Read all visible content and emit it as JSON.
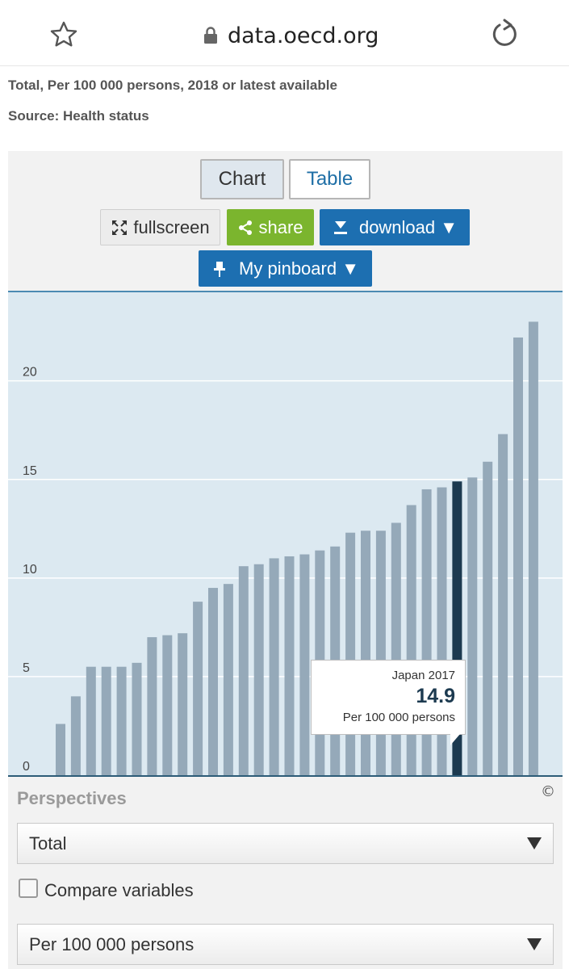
{
  "browser": {
    "url": "data.oecd.org"
  },
  "header": {
    "subtitle": "Total, Per 100 000 persons, 2018 or latest available",
    "source": "Source: Health status"
  },
  "toolbar": {
    "chart_label": "Chart",
    "table_label": "Table",
    "fullscreen_label": "fullscreen",
    "share_label": "share",
    "download_label": "download ▼",
    "pinboard_label": "My pinboard ▼"
  },
  "tooltip": {
    "title": "Japan 2017",
    "value": "14.9",
    "unit": "Per 100 000 persons"
  },
  "copyright": "©",
  "perspectives": {
    "heading": "Perspectives",
    "selected": "Total",
    "compare_label": "Compare variables",
    "compare_checked": false,
    "unit_selected": "Per 100 000 persons"
  },
  "colors": {
    "bar": "#95a9b9",
    "highlight": "#1c3a50",
    "gridline": "#ffffff"
  },
  "chart_data": {
    "type": "bar",
    "ylim": [
      0,
      24
    ],
    "yticks": [
      0,
      5,
      10,
      15,
      20
    ],
    "grid": true,
    "values": [
      2.6,
      4.0,
      5.5,
      5.5,
      5.5,
      5.7,
      7.0,
      7.1,
      7.2,
      8.8,
      9.5,
      9.7,
      10.6,
      10.7,
      11.0,
      11.1,
      11.2,
      11.4,
      11.6,
      12.3,
      12.4,
      12.4,
      12.8,
      13.7,
      14.5,
      14.6,
      14.9,
      15.1,
      15.9,
      17.3,
      22.2,
      23.0
    ],
    "highlight_index": 26
  }
}
